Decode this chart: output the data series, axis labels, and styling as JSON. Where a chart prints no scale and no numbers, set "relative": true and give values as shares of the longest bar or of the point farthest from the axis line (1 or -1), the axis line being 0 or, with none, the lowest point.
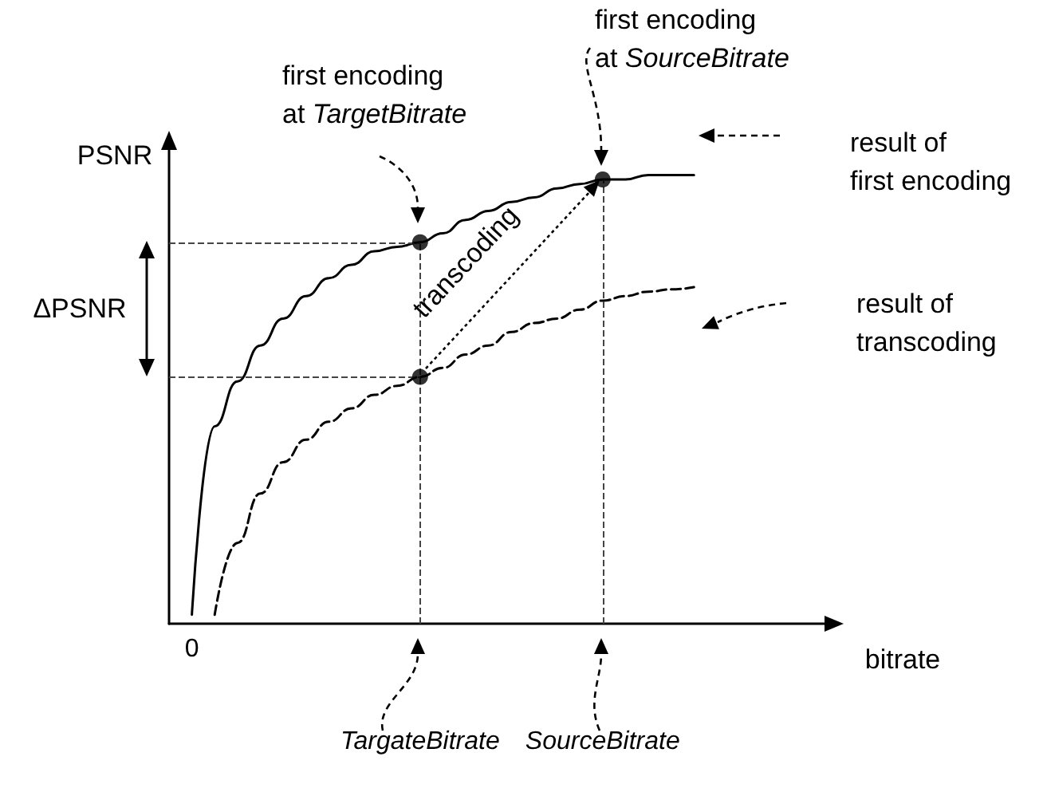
{
  "chart_data": {
    "type": "line",
    "relative": true,
    "xlabel": "bitrate",
    "ylabel": "PSNR",
    "categories": [
      null,
      "0",
      null,
      null,
      null,
      null,
      null,
      null,
      null,
      null,
      null,
      "TargateBitrate",
      null,
      null,
      null,
      null,
      null,
      null,
      null,
      "SourceBitrate",
      null,
      null,
      null,
      null,
      null,
      null,
      null,
      null,
      null,
      null
    ],
    "series": [
      {
        "color": "#000000",
        "line_style": "solid",
        "marker": "none",
        "values": [
          null,
          0.02,
          0.44,
          0.54,
          0.62,
          0.68,
          0.73,
          0.77,
          0.8,
          0.83,
          0.84,
          0.85,
          0.87,
          0.9,
          0.92,
          0.94,
          0.95,
          0.97,
          0.98,
          0.99,
          0.99,
          1.0,
          1.0,
          1.0,
          null,
          null,
          null,
          null,
          null,
          null
        ]
      },
      {
        "color": "#000000",
        "line_style": "dashed",
        "marker": "none",
        "values": [
          null,
          null,
          0.02,
          0.18,
          0.29,
          0.36,
          0.41,
          0.45,
          0.48,
          0.51,
          0.53,
          0.55,
          0.57,
          0.6,
          0.62,
          0.65,
          0.67,
          0.68,
          0.7,
          0.72,
          0.73,
          0.74,
          0.745,
          0.75,
          null,
          null,
          null,
          null,
          null,
          null
        ]
      },
      {
        "type": "scatter",
        "color": "#000000",
        "marker": "circle",
        "x": [
          "TargateBitrate",
          "TargateBitrate",
          "SourceBitrate"
        ],
        "values": [
          0.85,
          0.55,
          0.99
        ]
      }
    ],
    "ref_lines": [
      {
        "axis": "x",
        "value": "TargateBitrate",
        "line_style": "dashed",
        "color": "#444444"
      },
      {
        "axis": "x",
        "value": "SourceBitrate",
        "line_style": "dashed",
        "color": "#444444"
      },
      {
        "axis": "y",
        "value": 0.85,
        "line_style": "dashed",
        "color": "#444444"
      },
      {
        "axis": "y",
        "value": 0.55,
        "line_style": "dashed",
        "color": "#444444"
      }
    ],
    "annotations": [
      "first encoding\nat TargetBitrate",
      "first encoding\nat SourceBitrate",
      "result of\nfirst encoding",
      "result of\ntranscoding",
      "transcoding",
      "ΔPSNR"
    ],
    "grid": false
  }
}
